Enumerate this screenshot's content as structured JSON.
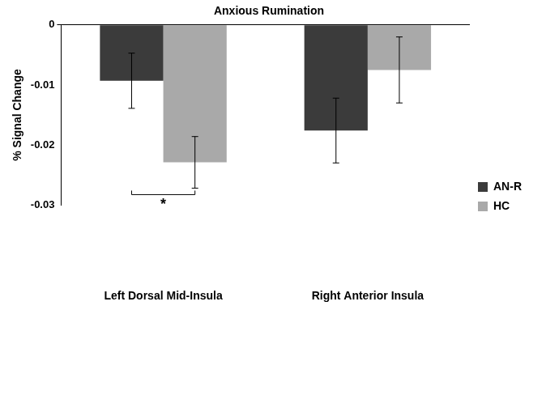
{
  "chart_data": {
    "type": "bar",
    "title": "Anxious Rumination",
    "y_label": "% Signal Change",
    "categories": [
      "Left Dorsal Mid-Insula",
      "Right Anterior Insula"
    ],
    "series": [
      {
        "name": "AN-R",
        "color": "#3b3b3b",
        "values": [
          -0.0093,
          -0.0176
        ],
        "errors": [
          0.0046,
          0.0054
        ]
      },
      {
        "name": "HC",
        "color": "#a9a9a9",
        "values": [
          -0.0229,
          -0.0075
        ],
        "errors": [
          0.0043,
          0.0055
        ]
      }
    ],
    "ylim": [
      -0.03,
      0
    ],
    "yticks": [
      -0.03,
      -0.02,
      -0.01,
      0
    ],
    "grid": false,
    "legend": "right",
    "annotations": [
      {
        "text": "*",
        "category": "Left Dorsal Mid-Insula"
      }
    ]
  }
}
